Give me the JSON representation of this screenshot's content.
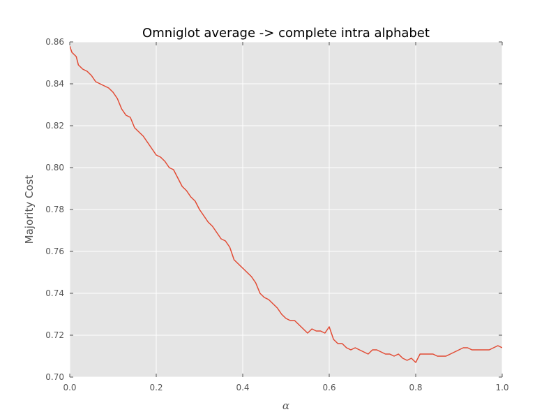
{
  "chart_data": {
    "type": "line",
    "title": "Omniglot average -> complete intra alphabet",
    "xlabel": "α",
    "ylabel": "Majority Cost",
    "xlim": [
      0.0,
      1.0
    ],
    "ylim": [
      0.7,
      0.86
    ],
    "xticks": [
      "0.0",
      "0.2",
      "0.4",
      "0.6",
      "0.8",
      "1.0"
    ],
    "yticks": [
      "0.70",
      "0.72",
      "0.74",
      "0.76",
      "0.78",
      "0.80",
      "0.82",
      "0.84",
      "0.86"
    ],
    "grid": true,
    "line_color": "#e24a33",
    "plot_background": "#e5e5e5",
    "grid_color": "#ffffff",
    "series": [
      {
        "x": [
          0.0,
          0.005,
          0.01,
          0.015,
          0.02,
          0.03,
          0.04,
          0.05,
          0.06,
          0.07,
          0.08,
          0.09,
          0.1,
          0.11,
          0.12,
          0.13,
          0.14,
          0.15,
          0.16,
          0.17,
          0.18,
          0.19,
          0.2,
          0.21,
          0.22,
          0.23,
          0.24,
          0.25,
          0.26,
          0.27,
          0.28,
          0.29,
          0.3,
          0.31,
          0.32,
          0.33,
          0.34,
          0.35,
          0.36,
          0.37,
          0.38,
          0.39,
          0.4,
          0.41,
          0.42,
          0.43,
          0.44,
          0.45,
          0.46,
          0.47,
          0.48,
          0.49,
          0.5,
          0.51,
          0.52,
          0.53,
          0.54,
          0.55,
          0.56,
          0.57,
          0.58,
          0.59,
          0.6,
          0.61,
          0.62,
          0.63,
          0.64,
          0.65,
          0.66,
          0.67,
          0.68,
          0.69,
          0.7,
          0.71,
          0.72,
          0.73,
          0.74,
          0.75,
          0.76,
          0.77,
          0.78,
          0.79,
          0.8,
          0.81,
          0.82,
          0.83,
          0.84,
          0.85,
          0.86,
          0.87,
          0.88,
          0.89,
          0.9,
          0.91,
          0.92,
          0.93,
          0.94,
          0.95,
          0.96,
          0.97,
          0.98,
          0.99,
          1.0
        ],
        "y": [
          0.858,
          0.855,
          0.854,
          0.853,
          0.849,
          0.847,
          0.846,
          0.844,
          0.841,
          0.84,
          0.839,
          0.838,
          0.836,
          0.833,
          0.828,
          0.825,
          0.824,
          0.819,
          0.817,
          0.815,
          0.812,
          0.809,
          0.806,
          0.805,
          0.803,
          0.8,
          0.799,
          0.795,
          0.791,
          0.789,
          0.786,
          0.784,
          0.78,
          0.777,
          0.774,
          0.772,
          0.769,
          0.766,
          0.765,
          0.762,
          0.756,
          0.754,
          0.752,
          0.75,
          0.748,
          0.745,
          0.74,
          0.738,
          0.737,
          0.735,
          0.733,
          0.73,
          0.728,
          0.727,
          0.727,
          0.725,
          0.723,
          0.721,
          0.723,
          0.722,
          0.722,
          0.721,
          0.724,
          0.718,
          0.716,
          0.716,
          0.714,
          0.713,
          0.714,
          0.713,
          0.712,
          0.711,
          0.713,
          0.713,
          0.712,
          0.711,
          0.711,
          0.71,
          0.711,
          0.709,
          0.708,
          0.709,
          0.707,
          0.711,
          0.711,
          0.711,
          0.711,
          0.71,
          0.71,
          0.71,
          0.711,
          0.712,
          0.713,
          0.714,
          0.714,
          0.713,
          0.713,
          0.713,
          0.713,
          0.713,
          0.714,
          0.715,
          0.714
        ]
      }
    ]
  }
}
